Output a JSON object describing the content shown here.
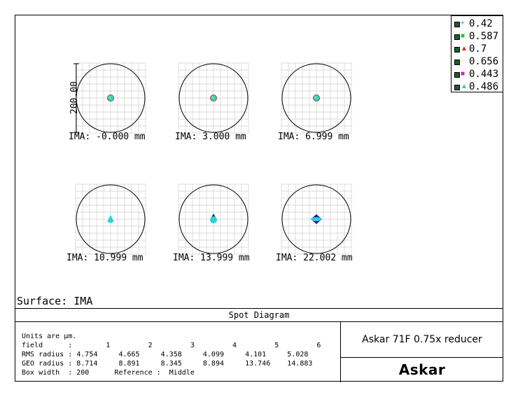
{
  "legend": [
    {
      "label": "0.42",
      "color": "#3a3aff",
      "marker": "+"
    },
    {
      "label": "0.587",
      "color": "#22cc22",
      "marker": "■"
    },
    {
      "label": "0.7",
      "color": "#dd2222",
      "marker": "▲"
    },
    {
      "label": "0.656",
      "color": "#e8e866",
      "marker": "+"
    },
    {
      "label": "0.443",
      "color": "#cc22cc",
      "marker": "■"
    },
    {
      "label": "0.486",
      "color": "#22cccc",
      "marker": "▲"
    }
  ],
  "scale_bar_label": "200.00",
  "fields": [
    {
      "label": "IMA: -0.000 mm",
      "spot": "small-round"
    },
    {
      "label": "IMA: 3.000 mm",
      "spot": "small-round"
    },
    {
      "label": "IMA: 6.999 mm",
      "spot": "small-round"
    },
    {
      "label": "IMA: 10.999 mm",
      "spot": "tri-cyan"
    },
    {
      "label": "IMA: 13.999 mm",
      "spot": "tri-blue"
    },
    {
      "label": "IMA: 22.002 mm",
      "spot": "diamond"
    }
  ],
  "surface_label": "Surface: IMA",
  "panel_title": "Spot Diagram",
  "info_lines": [
    "Units are µm.",
    "field      :        1         2         3         4         5         6",
    "RMS radius : 4.754     4.665     4.358     4.099     4.101     5.028",
    "GEO radius : 8.714     8.891     8.345     8.894     13.746    14.883",
    "Box width  : 200      Reference :  Middle"
  ],
  "system_name": "Askar 71F 0.75x reducer",
  "brand_logo": "Askar"
}
